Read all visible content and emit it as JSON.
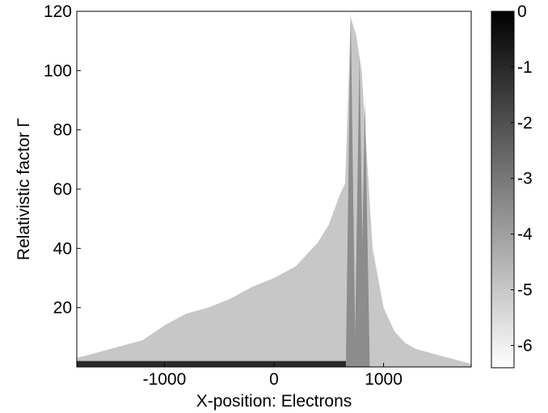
{
  "chart_data": {
    "type": "heatmap",
    "title": "",
    "xlabel": "X-position: Electrons",
    "ylabel": "Relativistic factor Γ",
    "xlim": [
      -1800,
      1800
    ],
    "ylim": [
      0,
      120
    ],
    "x_ticks": [
      -1000,
      0,
      1000
    ],
    "x_tick_labels": [
      "-1000",
      "0",
      "1000"
    ],
    "y_ticks": [
      20,
      40,
      60,
      80,
      100,
      120
    ],
    "y_tick_labels": [
      "20",
      "40",
      "60",
      "80",
      "100",
      "120"
    ],
    "colorbar": {
      "range": [
        -6.4,
        0
      ],
      "ticks": [
        0,
        -1,
        -2,
        -3,
        -4,
        -5,
        -6
      ],
      "tick_labels": [
        "0",
        "-1",
        "-2",
        "-3",
        "-4",
        "-5",
        "-6"
      ],
      "colormap": "gray",
      "low_color": "#ffffff",
      "high_color": "#000000"
    },
    "grid": false,
    "envelope": {
      "description_points_x": [
        -1800,
        -1500,
        -1200,
        -1000,
        -800,
        -600,
        -400,
        -200,
        0,
        200,
        400,
        500,
        600,
        650,
        700,
        750,
        800,
        850,
        900,
        1000,
        1100,
        1200,
        1300,
        1400,
        1500,
        1600,
        1700,
        1800
      ],
      "gamma_max": [
        3,
        6,
        9,
        14,
        18,
        20,
        23,
        27,
        30,
        34,
        42,
        48,
        58,
        62,
        118,
        112,
        100,
        70,
        40,
        20,
        12,
        8,
        6,
        5,
        4,
        3,
        2,
        1
      ]
    },
    "peaks": [
      {
        "x": 700,
        "gamma": 120
      },
      {
        "x": 780,
        "gamma": 105
      },
      {
        "x": 830,
        "gamma": 90
      }
    ],
    "dense_core": {
      "x_range": [
        -1800,
        760
      ],
      "gamma_max": 2
    }
  }
}
